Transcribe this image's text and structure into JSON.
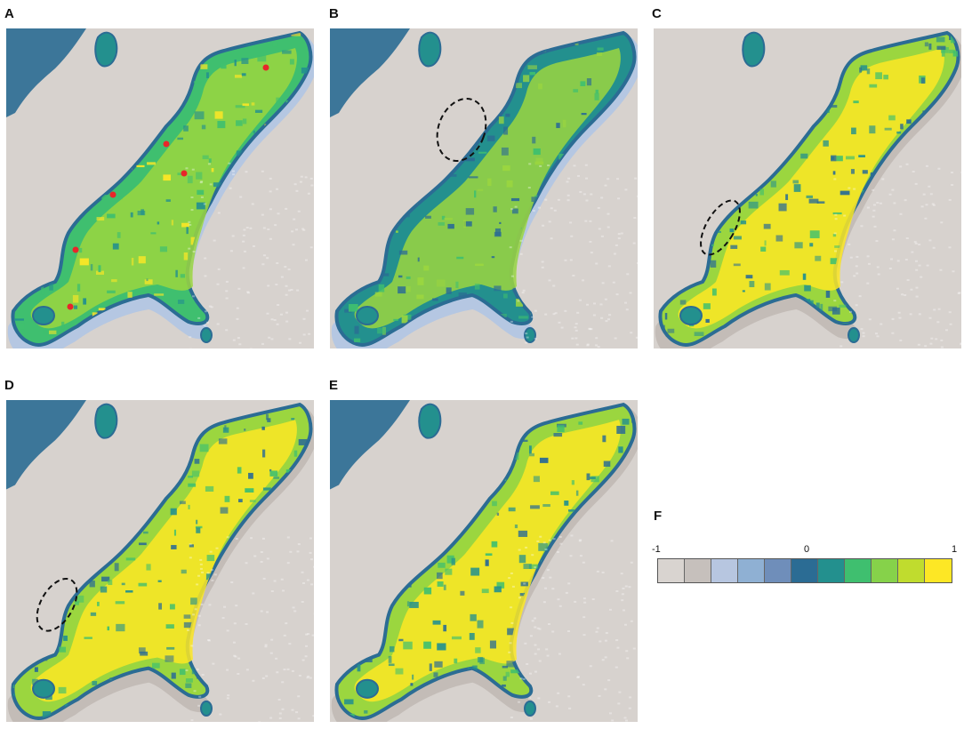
{
  "panels": [
    {
      "letter": "A",
      "variant": "low",
      "red_points": true,
      "ellipse": null
    },
    {
      "letter": "B",
      "variant": "low2",
      "red_points": false,
      "ellipse": "north"
    },
    {
      "letter": "C",
      "variant": "mid",
      "red_points": false,
      "ellipse": "west"
    },
    {
      "letter": "D",
      "variant": "high",
      "red_points": false,
      "ellipse": "southwest"
    },
    {
      "letter": "E",
      "variant": "high2",
      "red_points": false,
      "ellipse": null
    }
  ],
  "legend": {
    "letter": "F",
    "min_label": "-1",
    "zero_label": "0",
    "max_label": "1",
    "colors": [
      "#d9d4d0",
      "#c6c0bc",
      "#b7c6e0",
      "#8fb0d3",
      "#6f8eba",
      "#2b6c94",
      "#23908e",
      "#3fbf6f",
      "#86d24a",
      "#c0dc2e",
      "#fde725"
    ]
  },
  "colors": {
    "sea": "#d7d2ce",
    "shallow": "#b5c7e2",
    "edge": "#2b6c94",
    "teal": "#23908e",
    "green": "#3fbf6f",
    "lime": "#9bd63f",
    "yellow": "#fde725",
    "marker": "#e8262a",
    "ellipse": "#111111"
  }
}
